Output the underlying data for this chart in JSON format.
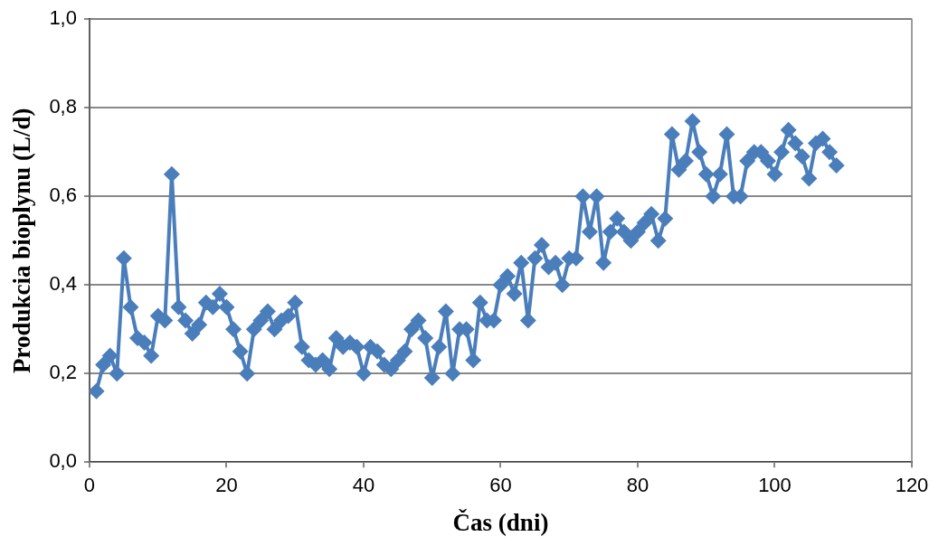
{
  "chart_data": {
    "type": "line",
    "xlabel": "Čas (dni)",
    "ylabel": "Produkcia bioplynu (L/d)",
    "x": [
      1,
      2,
      3,
      4,
      5,
      6,
      7,
      8,
      9,
      10,
      11,
      12,
      13,
      14,
      15,
      16,
      17,
      18,
      19,
      20,
      21,
      22,
      23,
      24,
      25,
      26,
      27,
      28,
      29,
      30,
      31,
      32,
      33,
      34,
      35,
      36,
      37,
      38,
      39,
      40,
      41,
      42,
      43,
      44,
      45,
      46,
      47,
      48,
      49,
      50,
      51,
      52,
      53,
      54,
      55,
      56,
      57,
      58,
      59,
      60,
      61,
      62,
      63,
      64,
      65,
      66,
      67,
      68,
      69,
      70,
      71,
      72,
      73,
      74,
      75,
      76,
      77,
      78,
      79,
      80,
      81,
      82,
      83,
      84,
      85,
      86,
      87,
      88,
      89,
      90,
      91,
      92,
      93,
      94,
      95,
      96,
      97,
      98,
      99,
      100,
      101,
      102,
      103,
      104,
      105,
      106,
      107,
      108,
      109
    ],
    "series": [
      {
        "color": "#4a7ebb",
        "values": [
          0.16,
          0.22,
          0.24,
          0.2,
          0.46,
          0.35,
          0.28,
          0.27,
          0.24,
          0.33,
          0.32,
          0.65,
          0.35,
          0.32,
          0.29,
          0.31,
          0.36,
          0.35,
          0.38,
          0.35,
          0.3,
          0.25,
          0.2,
          0.3,
          0.32,
          0.34,
          0.3,
          0.32,
          0.33,
          0.36,
          0.26,
          0.23,
          0.22,
          0.23,
          0.21,
          0.28,
          0.26,
          0.27,
          0.26,
          0.2,
          0.26,
          0.25,
          0.22,
          0.21,
          0.23,
          0.25,
          0.3,
          0.32,
          0.28,
          0.19,
          0.26,
          0.34,
          0.2,
          0.3,
          0.3,
          0.23,
          0.36,
          0.32,
          0.32,
          0.4,
          0.42,
          0.38,
          0.45,
          0.32,
          0.46,
          0.49,
          0.44,
          0.45,
          0.4,
          0.46,
          0.46,
          0.6,
          0.52,
          0.6,
          0.45,
          0.52,
          0.55,
          0.52,
          0.5,
          0.52,
          0.54,
          0.56,
          0.5,
          0.55,
          0.74,
          0.66,
          0.68,
          0.77,
          0.7,
          0.65,
          0.6,
          0.65,
          0.74,
          0.6,
          0.6,
          0.68,
          0.7,
          0.7,
          0.68,
          0.65,
          0.7,
          0.75,
          0.72,
          0.69,
          0.64,
          0.72,
          0.73,
          0.7,
          0.67
        ]
      }
    ],
    "xlim": [
      0,
      120
    ],
    "xticks": [
      0,
      20,
      40,
      60,
      80,
      100,
      120
    ],
    "ylim": [
      0,
      1
    ],
    "yticks": [
      {
        "value": 0,
        "label": "0,0"
      },
      {
        "value": 0.2,
        "label": "0,2"
      },
      {
        "value": 0.4,
        "label": "0,4"
      },
      {
        "value": 0.6,
        "label": "0,6"
      },
      {
        "value": 0.8,
        "label": "0,8"
      },
      {
        "value": 1,
        "label": "1,0"
      }
    ],
    "grid": "y",
    "legend": false,
    "marker": "diamond",
    "line_style": "solid"
  }
}
